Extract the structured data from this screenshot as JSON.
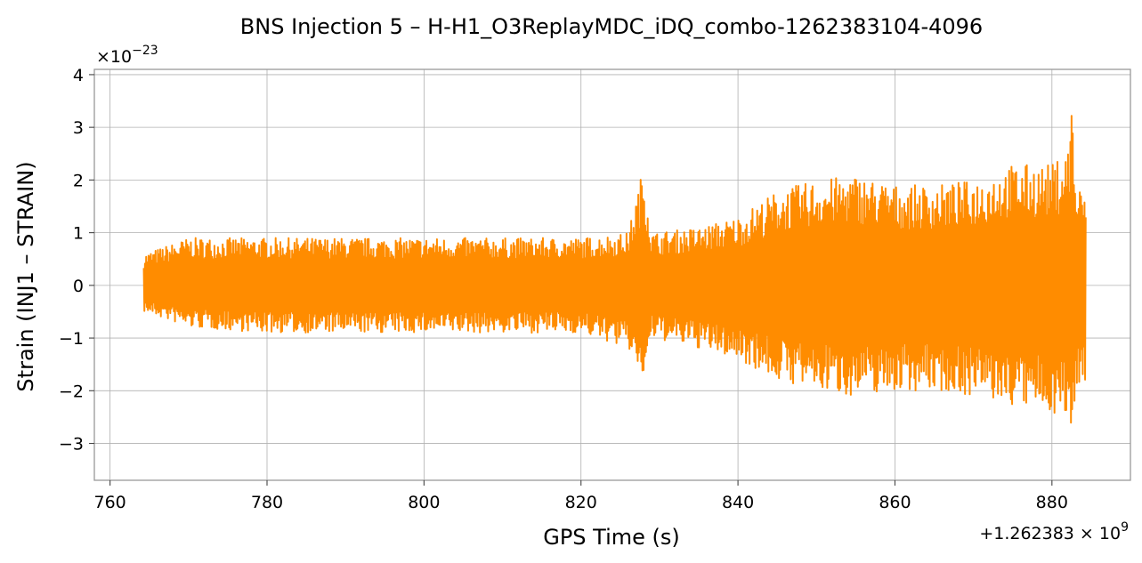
{
  "chart_data": {
    "type": "line",
    "title": "BNS Injection 5 – H-H1_O3ReplayMDC_iDQ_combo-1262383104-4096",
    "xlabel": "GPS Time (s)",
    "ylabel": "Strain (INJ1 – STRAIN)",
    "x_offset_label": "+1.262383 × 10",
    "x_offset_exponent": "9",
    "y_scale_label": "×10",
    "y_scale_exponent": "−23",
    "xlim": [
      758,
      890
    ],
    "ylim": [
      -3.7,
      4.1
    ],
    "xticks": [
      760,
      780,
      800,
      820,
      840,
      860,
      880
    ],
    "xtick_labels": [
      "760",
      "780",
      "800",
      "820",
      "840",
      "860",
      "880"
    ],
    "yticks": [
      -3,
      -2,
      -1,
      0,
      1,
      2,
      3,
      4
    ],
    "ytick_labels": [
      "−3",
      "−2",
      "−1",
      "0",
      "1",
      "2",
      "3",
      "4"
    ],
    "grid": true,
    "series": [
      {
        "color": "#ff8c00",
        "x_start": 764.3,
        "x_end": 884.3,
        "envelope": {
          "x": [
            764.3,
            770,
            780,
            790,
            800,
            810,
            820,
            826,
            828,
            829,
            835,
            840,
            845,
            850,
            855,
            860,
            865,
            870,
            875,
            880,
            882,
            882.6,
            883,
            884.3
          ],
          "upper": [
            0.6,
            0.9,
            0.9,
            0.9,
            0.9,
            0.9,
            0.9,
            1.0,
            2.3,
            1.0,
            1.1,
            1.3,
            1.8,
            2.0,
            2.1,
            1.9,
            1.9,
            2.0,
            2.3,
            2.3,
            2.6,
            3.75,
            1.9,
            1.8
          ],
          "lower": [
            -0.5,
            -0.8,
            -0.9,
            -0.9,
            -0.9,
            -0.9,
            -0.9,
            -1.2,
            -1.8,
            -1.0,
            -1.2,
            -1.4,
            -1.8,
            -2.0,
            -2.1,
            -2.0,
            -2.0,
            -2.1,
            -2.3,
            -2.4,
            -2.6,
            -3.35,
            -1.9,
            -1.8
          ]
        }
      }
    ]
  }
}
